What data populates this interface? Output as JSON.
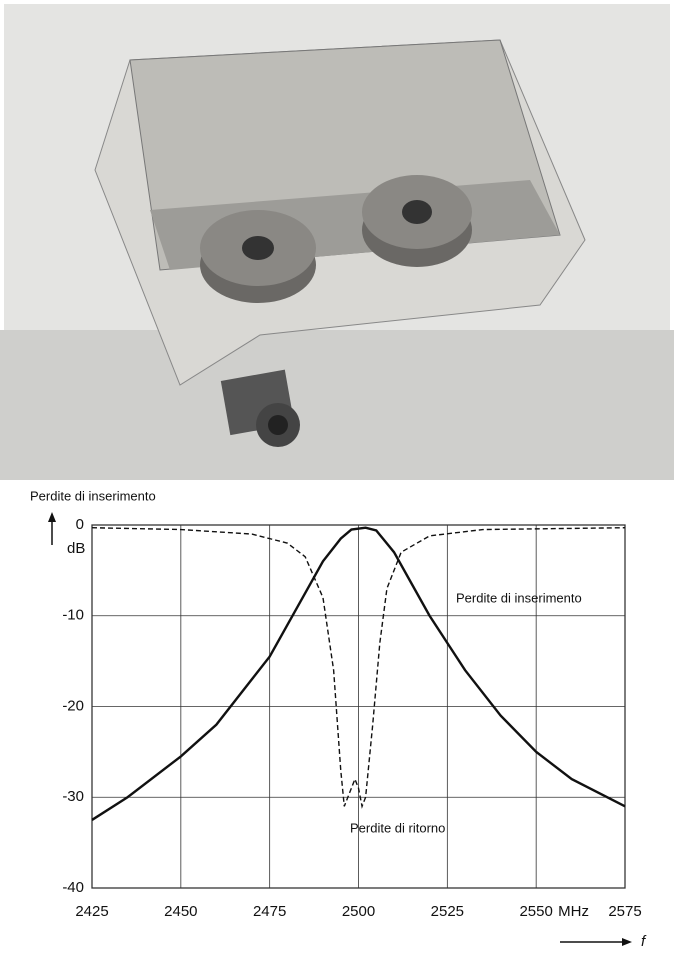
{
  "chart_data": {
    "type": "line",
    "y_label": "Perdite di inserimento",
    "y_unit": "dB",
    "x_unit": "MHz",
    "x_label": "f",
    "xlim": [
      2425,
      2575
    ],
    "xticks": [
      2425,
      2450,
      2475,
      2500,
      2525,
      2550,
      2575
    ],
    "ylim": [
      -40,
      0
    ],
    "yticks": [
      -40,
      -30,
      -20,
      -10,
      0
    ],
    "grid": true,
    "series": [
      {
        "name": "Perdite di inserimento",
        "color": "#111111",
        "dash": false,
        "x": [
          2425,
          2435,
          2450,
          2460,
          2470,
          2475,
          2480,
          2485,
          2490,
          2495,
          2498,
          2502,
          2505,
          2510,
          2515,
          2520,
          2525,
          2530,
          2540,
          2550,
          2560,
          2575
        ],
        "values": [
          -32.5,
          -30,
          -25.5,
          -22,
          -17,
          -14.5,
          -11,
          -7.5,
          -4,
          -1.5,
          -0.5,
          -0.3,
          -0.6,
          -3,
          -6.5,
          -10,
          -13,
          -16,
          -21,
          -25,
          -28,
          -31
        ]
      },
      {
        "name": "Perdite di ritorno",
        "color": "#111111",
        "dash": true,
        "x": [
          2425,
          2450,
          2470,
          2480,
          2485,
          2490,
          2493,
          2495,
          2496,
          2497,
          2498,
          2499,
          2500,
          2501,
          2502,
          2504,
          2506,
          2508,
          2512,
          2520,
          2535,
          2575
        ],
        "values": [
          -0.3,
          -0.5,
          -1,
          -2,
          -3.5,
          -8,
          -16,
          -27,
          -31,
          -30,
          -29,
          -28,
          -29,
          -31,
          -30,
          -22,
          -13,
          -7,
          -3,
          -1.2,
          -0.5,
          -0.3
        ]
      }
    ]
  }
}
